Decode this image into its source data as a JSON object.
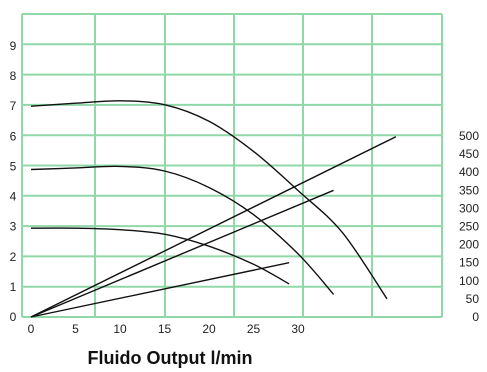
{
  "chart_data": {
    "type": "line",
    "xlabel": "Fluido Output  l/min",
    "x_ticks": [
      "0",
      "5",
      "10",
      "15",
      "20",
      "25",
      "30"
    ],
    "y_left_ticks": [
      "0",
      "1",
      "2",
      "3",
      "4",
      "5",
      "6",
      "7",
      "8",
      "9"
    ],
    "y_right_ticks": [
      "0",
      "50",
      "100",
      "150",
      "200",
      "250",
      "300",
      "350",
      "400",
      "450",
      "500"
    ],
    "grid": true,
    "colors": {
      "grid": "#90d8a8",
      "line": "#111111",
      "background": "#ffffff"
    },
    "series": [
      {
        "axis": "left",
        "points": [
          [
            0,
            7.0
          ],
          [
            5,
            7.1
          ],
          [
            10,
            7.18
          ],
          [
            15,
            7.05
          ],
          [
            20,
            6.5
          ],
          [
            25,
            5.5
          ],
          [
            30,
            4.2
          ],
          [
            35,
            2.8
          ],
          [
            40,
            0.6
          ]
        ]
      },
      {
        "axis": "left",
        "points": [
          [
            0,
            4.9
          ],
          [
            5,
            4.95
          ],
          [
            10,
            5.0
          ],
          [
            15,
            4.85
          ],
          [
            20,
            4.3
          ],
          [
            25,
            3.4
          ],
          [
            30,
            2.1
          ],
          [
            34,
            0.75
          ]
        ]
      },
      {
        "axis": "left",
        "points": [
          [
            0,
            2.95
          ],
          [
            5,
            2.95
          ],
          [
            10,
            2.9
          ],
          [
            15,
            2.75
          ],
          [
            20,
            2.35
          ],
          [
            25,
            1.75
          ],
          [
            29,
            1.1
          ]
        ]
      },
      {
        "axis": "right",
        "points": [
          [
            0,
            0
          ],
          [
            41,
            498
          ]
        ]
      },
      {
        "axis": "right",
        "points": [
          [
            0,
            0
          ],
          [
            34,
            350
          ]
        ]
      },
      {
        "axis": "right",
        "points": [
          [
            0,
            0
          ],
          [
            29,
            150
          ]
        ]
      }
    ]
  }
}
